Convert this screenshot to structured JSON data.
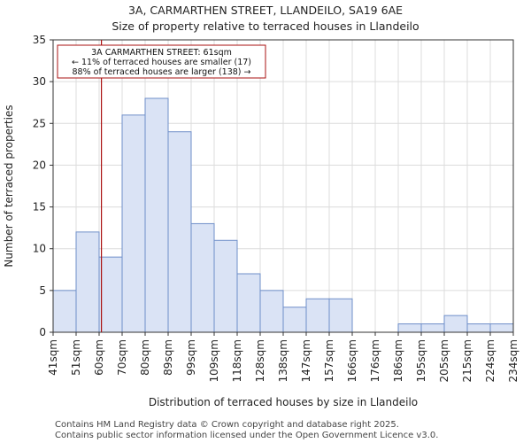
{
  "chart_data": {
    "type": "bar",
    "title": "3A, CARMARTHEN STREET, LLANDEILO, SA19 6AE",
    "subtitle": "Size of property relative to terraced houses in Llandeilo",
    "xlabel": "Distribution of terraced houses by size in Llandeilo",
    "ylabel": "Number of terraced properties",
    "bin_edges": [
      "41sqm",
      "51sqm",
      "60sqm",
      "70sqm",
      "80sqm",
      "89sqm",
      "99sqm",
      "109sqm",
      "118sqm",
      "128sqm",
      "138sqm",
      "147sqm",
      "157sqm",
      "166sqm",
      "176sqm",
      "186sqm",
      "195sqm",
      "205sqm",
      "215sqm",
      "224sqm",
      "234sqm"
    ],
    "values": [
      5,
      12,
      9,
      26,
      28,
      24,
      13,
      11,
      7,
      5,
      3,
      4,
      4,
      0,
      0,
      1,
      1,
      2,
      1,
      1
    ],
    "ylim": [
      0,
      35
    ],
    "yticks": [
      0,
      5,
      10,
      15,
      20,
      25,
      30,
      35
    ],
    "grid": true,
    "bar_color": "#dae3f5",
    "bar_edge_color": "#6f8fc9",
    "marker": {
      "value_bin_position": 2.1,
      "color": "#aa1111",
      "annotation_lines": [
        "3A CARMARTHEN STREET: 61sqm",
        "← 11% of terraced houses are smaller (17)",
        "88% of terraced houses are larger (138) →"
      ]
    }
  },
  "footer": {
    "line1": "Contains HM Land Registry data © Crown copyright and database right 2025.",
    "line2": "Contains public sector information licensed under the Open Government Licence v3.0."
  }
}
